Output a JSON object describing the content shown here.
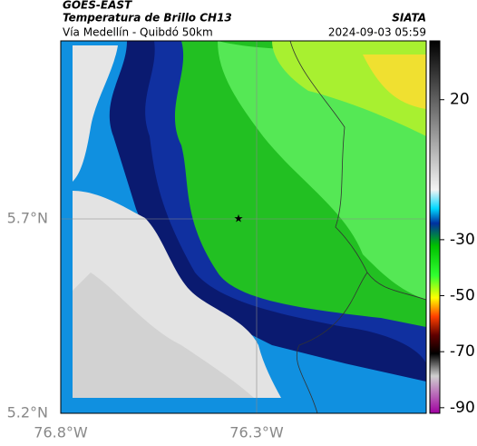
{
  "header": {
    "title": "GOES-EAST",
    "product": "Temperatura de Brillo CH13",
    "brand": "SIATA",
    "subtitle": "Vía Medellín - Quibdó 50km",
    "timestamp": "2024-09-03 05:59"
  },
  "map": {
    "x_labels": [
      "76.8°W",
      "76.3°W"
    ],
    "y_labels": [
      "5.7°N",
      "5.2°N"
    ]
  },
  "colorbar": {
    "range": [
      41,
      -92
    ],
    "ticks": [
      20,
      -30,
      -50,
      -70,
      -90
    ]
  }
}
